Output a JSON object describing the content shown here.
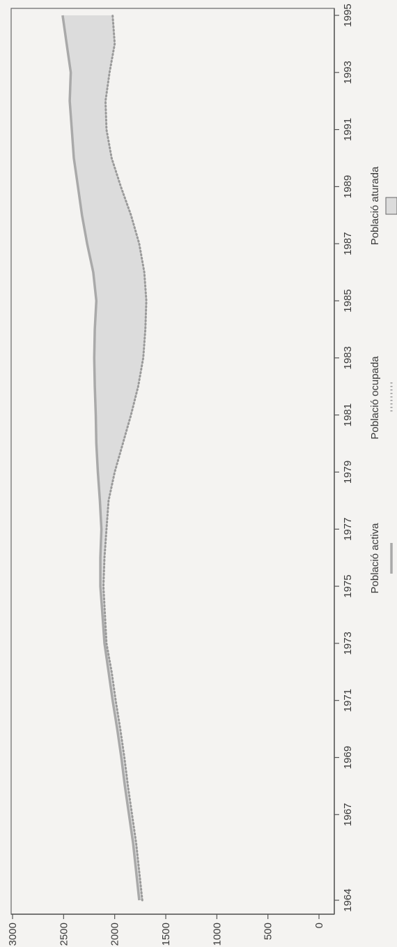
{
  "chart_data": {
    "type": "area",
    "orientation": "rotated-90-clockwise",
    "title": "",
    "xlabel": "",
    "ylabel": "",
    "x_ticks": [
      "1964",
      "1967",
      "1969",
      "1971",
      "1973",
      "1975",
      "1977",
      "1979",
      "1981",
      "1983",
      "1985",
      "1987",
      "1989",
      "1991",
      "1993",
      "1995"
    ],
    "y_ticks": [
      "0",
      "500",
      "1000",
      "1500",
      "2000",
      "2500",
      "3000"
    ],
    "ylim": [
      0,
      3000
    ],
    "xlim": [
      1964,
      1995
    ],
    "x": [
      1964,
      1965,
      1966,
      1967,
      1968,
      1969,
      1970,
      1971,
      1972,
      1973,
      1974,
      1975,
      1976,
      1977,
      1978,
      1979,
      1980,
      1981,
      1982,
      1983,
      1984,
      1985,
      1986,
      1987,
      1988,
      1989,
      1990,
      1991,
      1992,
      1993,
      1994,
      1995
    ],
    "series": [
      {
        "name": "Població activa",
        "values": [
          1760,
          1790,
          1820,
          1860,
          1900,
          1935,
          1975,
          2020,
          2060,
          2100,
          2120,
          2140,
          2140,
          2130,
          2145,
          2165,
          2180,
          2185,
          2195,
          2200,
          2195,
          2180,
          2210,
          2270,
          2320,
          2360,
          2400,
          2420,
          2440,
          2430,
          2470,
          2510
        ]
      },
      {
        "name": "Població ocupada",
        "values": [
          1730,
          1760,
          1790,
          1830,
          1870,
          1905,
          1945,
          1990,
          2030,
          2080,
          2095,
          2110,
          2100,
          2080,
          2060,
          2000,
          1920,
          1840,
          1770,
          1720,
          1700,
          1690,
          1710,
          1760,
          1840,
          1940,
          2030,
          2080,
          2090,
          2050,
          2000,
          2020
        ]
      }
    ],
    "legend": {
      "placement": "bottom",
      "entries": [
        "Població activa",
        "Població ocupada",
        "Població aturada"
      ]
    },
    "colors": {
      "activa": "#a9a9a9",
      "ocupada": "#9a9a9a",
      "aturada": "#dcdcdc",
      "axis": "#555555",
      "background": "#f4f3f1"
    }
  }
}
